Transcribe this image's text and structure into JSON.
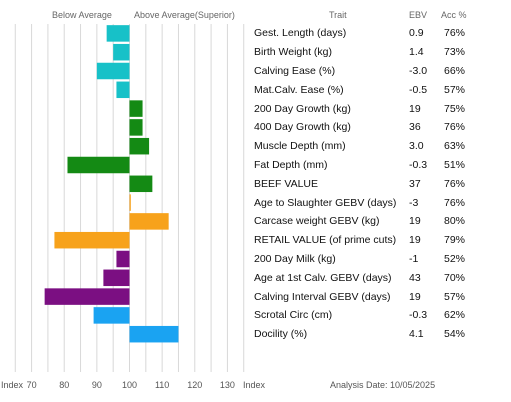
{
  "header": {
    "below_average": "Below Average",
    "above_average": "Above Average(Superior)",
    "trait": "Trait",
    "ebv": "EBV",
    "acc": "Acc %"
  },
  "footer": {
    "index_left": "Index",
    "index_right": "Index",
    "analysis_date": "Analysis Date: 10/05/2025"
  },
  "colors": {
    "cyan": "#17c1c8",
    "green": "#148a14",
    "orange": "#f7a21b",
    "purple": "#7b0f82",
    "blue": "#1aa3f2",
    "grid": "#d8d8d8"
  },
  "chart_data": {
    "type": "bar",
    "orientation": "horizontal",
    "baseline": 100,
    "xlim": [
      64,
      136
    ],
    "xticks": [
      70,
      80,
      90,
      100,
      110,
      120,
      130
    ],
    "grid": true,
    "categories": [
      "Gest. Length (days)",
      "Birth Weight (kg)",
      "Calving Ease (%)",
      "Mat.Calv. Ease (%)",
      "200 Day Growth (kg)",
      "400 Day Growth (kg)",
      "Muscle Depth (mm)",
      "Fat Depth (mm)",
      "BEEF VALUE",
      "Age to Slaughter GEBV (days)",
      "Carcase weight GEBV (kg)",
      "RETAIL VALUE (of prime cuts)",
      "200 Day Milk (kg)",
      "Age at 1st Calv. GEBV (days)",
      "Calving Interval GEBV (days)",
      "Scrotal Circ (cm)",
      "Docility (%)"
    ],
    "ebv": [
      "0.9",
      "1.4",
      "-3.0",
      "-0.5",
      "19",
      "36",
      "3.0",
      "-0.3",
      "37",
      "-3",
      "19",
      "19",
      "-1",
      "43",
      "19",
      "-0.3",
      "4.1"
    ],
    "acc": [
      "76%",
      "73%",
      "66%",
      "57%",
      "75%",
      "76%",
      "63%",
      "51%",
      "76%",
      "76%",
      "80%",
      "79%",
      "52%",
      "70%",
      "57%",
      "62%",
      "54%"
    ],
    "index_values": [
      93,
      95,
      90,
      96,
      104,
      104,
      106,
      81,
      107,
      100.4,
      112,
      77,
      96,
      92,
      74,
      89,
      115
    ],
    "bar_colors": [
      "cyan",
      "cyan",
      "cyan",
      "cyan",
      "green",
      "green",
      "green",
      "green",
      "green",
      "orange",
      "orange",
      "orange",
      "purple",
      "purple",
      "purple",
      "blue",
      "blue"
    ]
  }
}
